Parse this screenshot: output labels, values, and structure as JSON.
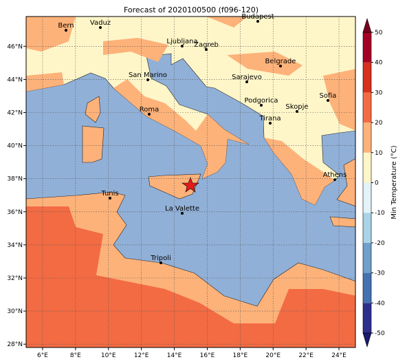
{
  "title": "Forecast of 2020100500 (f096-120)",
  "map": {
    "xlim": [
      5,
      25
    ],
    "ylim": [
      27.8,
      47.8
    ],
    "xticks": [
      {
        "value": 6,
        "label": "6°E"
      },
      {
        "value": 8,
        "label": "8°E"
      },
      {
        "value": 10,
        "label": "10°E"
      },
      {
        "value": 12,
        "label": "12°E"
      },
      {
        "value": 14,
        "label": "14°E"
      },
      {
        "value": 16,
        "label": "16°E"
      },
      {
        "value": 18,
        "label": "18°E"
      },
      {
        "value": 20,
        "label": "20°E"
      },
      {
        "value": 22,
        "label": "22°E"
      },
      {
        "value": 24,
        "label": "24°E"
      }
    ],
    "yticks": [
      {
        "value": 28,
        "label": "28°N"
      },
      {
        "value": 30,
        "label": "30°N"
      },
      {
        "value": 32,
        "label": "32°N"
      },
      {
        "value": 34,
        "label": "34°N"
      },
      {
        "value": 36,
        "label": "36°N"
      },
      {
        "value": 38,
        "label": "38°N"
      },
      {
        "value": 40,
        "label": "40°N"
      },
      {
        "value": 42,
        "label": "42°N"
      },
      {
        "value": 44,
        "label": "44°N"
      },
      {
        "value": 46,
        "label": "46°N"
      }
    ],
    "cities": [
      "Bern",
      "Vaduz",
      "Budapest",
      "Ljubljana",
      "Zagreb",
      "Belgrade",
      "San Marino",
      "Sarajevo",
      "Sofia",
      "Podgorica",
      "Skopje",
      "Roma",
      "Tirana",
      "Athens",
      "Tunis",
      "La Valette",
      "Tripoli"
    ],
    "colorbar": {
      "label": "Min Temperature (°C)",
      "lim": [
        -50,
        50
      ],
      "ticks": [
        50,
        40,
        30,
        20,
        10,
        0,
        -10,
        -20,
        -30,
        -40,
        -50
      ],
      "colors": [
        "#2d2f8e",
        "#4472b0",
        "#6f9fcb",
        "#a9d3e6",
        "#e3f3f8",
        "#fef6c8",
        "#fdb27a",
        "#f36b43",
        "#d7301f",
        "#a50026"
      ]
    }
  }
}
